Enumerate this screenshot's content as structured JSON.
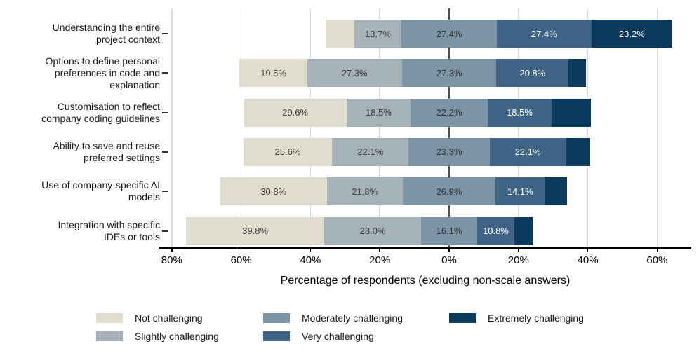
{
  "chart_data": {
    "type": "bar",
    "variant": "diverging-stacked-horizontal",
    "title": "",
    "xlabel": "Percentage of respondents (excluding non-scale answers)",
    "x_ticks": [
      {
        "value": -80,
        "label": "80%"
      },
      {
        "value": -60,
        "label": "60%"
      },
      {
        "value": -40,
        "label": "40%"
      },
      {
        "value": -20,
        "label": "20%"
      },
      {
        "value": 0,
        "label": "0%"
      },
      {
        "value": 20,
        "label": "20%"
      },
      {
        "value": 40,
        "label": "40%"
      },
      {
        "value": 60,
        "label": "60%"
      }
    ],
    "xlim": [
      -83.5,
      70
    ],
    "grid": "vertical",
    "center_category": "Moderately challenging",
    "categories": [
      "Understanding the entire project context",
      "Options to define personal preferences in code and explanation",
      "Customisation to reflect company coding guidelines",
      "Ability to save and reuse preferred settings",
      "Use of company-specific AI models",
      "Integration with specific IDEs or tools"
    ],
    "category_lines": [
      [
        "Understanding the entire",
        "project context"
      ],
      [
        "Options to define personal",
        "preferences in code and",
        "explanation"
      ],
      [
        "Customisation to reflect",
        "company coding guidelines"
      ],
      [
        "Ability to save and reuse",
        "preferred settings"
      ],
      [
        "Use of company-specific AI",
        "models"
      ],
      [
        "Integration with specific",
        "IDEs or tools"
      ]
    ],
    "series": [
      {
        "name": "Not challenging",
        "color": "#e0ddcf",
        "label_color": "#3a3a3a",
        "values": [
          8.3,
          19.5,
          29.6,
          25.6,
          30.8,
          39.8
        ],
        "labels": [
          "",
          "19.5%",
          "29.6%",
          "25.6%",
          "30.8%",
          "39.8%"
        ]
      },
      {
        "name": "Slightly challenging",
        "color": "#a5b2b8",
        "label_color": "#3a3a3a",
        "values": [
          13.7,
          27.3,
          18.5,
          22.1,
          21.8,
          28.0
        ],
        "labels": [
          "13.7%",
          "27.3%",
          "18.5%",
          "22.1%",
          "21.8%",
          "28.0%"
        ]
      },
      {
        "name": "Moderately challenging",
        "color": "#7b94a6",
        "label_color": "#333333",
        "values": [
          27.4,
          27.3,
          22.2,
          23.3,
          26.9,
          16.1
        ],
        "labels": [
          "27.4%",
          "27.3%",
          "22.2%",
          "23.3%",
          "26.9%",
          "16.1%"
        ]
      },
      {
        "name": "Very challenging",
        "color": "#3e6384",
        "label_color": "#ffffff",
        "values": [
          27.4,
          20.8,
          18.5,
          22.1,
          14.1,
          10.8
        ],
        "labels": [
          "27.4%",
          "20.8%",
          "18.5%",
          "22.1%",
          "14.1%",
          "10.8%"
        ]
      },
      {
        "name": "Extremely challenging",
        "color": "#0c3a5d",
        "label_color": "#ffffff",
        "values": [
          23.2,
          5.1,
          11.2,
          6.9,
          6.4,
          5.3
        ],
        "labels": [
          "23.2%",
          "",
          "",
          "",
          "",
          ""
        ]
      }
    ],
    "legend": {
      "columns": [
        [
          "Not challenging",
          "Slightly challenging"
        ],
        [
          "Moderately challenging",
          "Very challenging"
        ],
        [
          "Extremely challenging"
        ]
      ],
      "position": "bottom"
    }
  }
}
